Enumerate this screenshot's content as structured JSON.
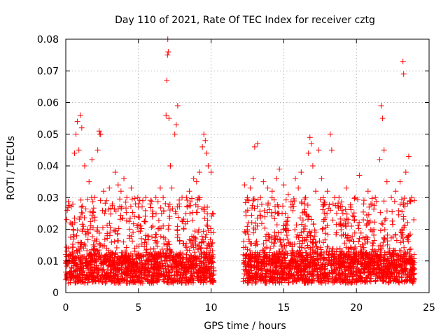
{
  "chart_data": {
    "type": "scatter",
    "title": "Day 110 of 2021, Rate Of TEC Index for receiver cztg",
    "xlabel": "GPS time / hours",
    "ylabel": "ROTI / TECUs",
    "xlim": [
      0,
      25
    ],
    "ylim": [
      0,
      0.08
    ],
    "xticks": [
      0,
      5,
      10,
      15,
      20,
      25
    ],
    "yticks": [
      0,
      0.01,
      0.02,
      0.03,
      0.04,
      0.05,
      0.06,
      0.07,
      0.08
    ],
    "xtick_labels": [
      "0",
      "5",
      "10",
      "15",
      "20",
      "25"
    ],
    "ytick_labels": [
      "0",
      "0.01",
      "0.02",
      "0.03",
      "0.04",
      "0.05",
      "0.06",
      "0.07",
      "0.08"
    ],
    "grid": true,
    "marker": "+",
    "color": "#ff0000",
    "data_gap_hours": [
      10.2,
      12.2
    ],
    "series": [
      {
        "name": "ROTI",
        "points": [
          [
            0.1,
            0.026
          ],
          [
            0.2,
            0.014
          ],
          [
            0.3,
            0.022
          ],
          [
            0.5,
            0.02
          ],
          [
            0.6,
            0.044
          ],
          [
            0.7,
            0.05
          ],
          [
            0.8,
            0.054
          ],
          [
            0.9,
            0.045
          ],
          [
            1.0,
            0.056
          ],
          [
            1.1,
            0.052
          ],
          [
            1.3,
            0.04
          ],
          [
            1.6,
            0.035
          ],
          [
            1.8,
            0.042
          ],
          [
            2.0,
            0.03
          ],
          [
            2.2,
            0.045
          ],
          [
            2.3,
            0.051
          ],
          [
            2.35,
            0.05
          ],
          [
            2.4,
            0.05
          ],
          [
            2.6,
            0.032
          ],
          [
            2.8,
            0.029
          ],
          [
            3.0,
            0.033
          ],
          [
            3.2,
            0.028
          ],
          [
            3.4,
            0.038
          ],
          [
            3.6,
            0.034
          ],
          [
            3.8,
            0.032
          ],
          [
            4.0,
            0.036
          ],
          [
            4.2,
            0.03
          ],
          [
            4.5,
            0.033
          ],
          [
            4.8,
            0.028
          ],
          [
            5.0,
            0.027
          ],
          [
            5.3,
            0.029
          ],
          [
            5.5,
            0.03
          ],
          [
            5.8,
            0.028
          ],
          [
            6.0,
            0.025
          ],
          [
            6.2,
            0.03
          ],
          [
            6.5,
            0.033
          ],
          [
            6.7,
            0.03
          ],
          [
            6.9,
            0.056
          ],
          [
            6.95,
            0.067
          ],
          [
            7.0,
            0.075
          ],
          [
            7.02,
            0.08
          ],
          [
            7.05,
            0.076
          ],
          [
            7.1,
            0.055
          ],
          [
            7.2,
            0.04
          ],
          [
            7.3,
            0.033
          ],
          [
            7.5,
            0.05
          ],
          [
            7.6,
            0.053
          ],
          [
            7.7,
            0.059
          ],
          [
            7.8,
            0.028
          ],
          [
            8.0,
            0.03
          ],
          [
            8.3,
            0.03
          ],
          [
            8.5,
            0.032
          ],
          [
            8.8,
            0.036
          ],
          [
            9.0,
            0.035
          ],
          [
            9.2,
            0.038
          ],
          [
            9.4,
            0.046
          ],
          [
            9.5,
            0.05
          ],
          [
            9.6,
            0.048
          ],
          [
            9.7,
            0.044
          ],
          [
            9.8,
            0.04
          ],
          [
            10.0,
            0.038
          ],
          [
            10.1,
            0.025
          ],
          [
            12.3,
            0.034
          ],
          [
            12.5,
            0.03
          ],
          [
            12.7,
            0.033
          ],
          [
            12.9,
            0.036
          ],
          [
            13.0,
            0.046
          ],
          [
            13.2,
            0.047
          ],
          [
            13.4,
            0.03
          ],
          [
            13.6,
            0.035
          ],
          [
            13.9,
            0.033
          ],
          [
            14.2,
            0.032
          ],
          [
            14.5,
            0.036
          ],
          [
            14.7,
            0.039
          ],
          [
            15.0,
            0.034
          ],
          [
            15.3,
            0.031
          ],
          [
            15.5,
            0.027
          ],
          [
            15.8,
            0.036
          ],
          [
            16.0,
            0.033
          ],
          [
            16.2,
            0.038
          ],
          [
            16.5,
            0.03
          ],
          [
            16.7,
            0.044
          ],
          [
            16.8,
            0.049
          ],
          [
            16.9,
            0.047
          ],
          [
            17.0,
            0.04
          ],
          [
            17.2,
            0.032
          ],
          [
            17.4,
            0.045
          ],
          [
            17.6,
            0.036
          ],
          [
            17.8,
            0.028
          ],
          [
            18.0,
            0.032
          ],
          [
            18.2,
            0.05
          ],
          [
            18.3,
            0.045
          ],
          [
            18.5,
            0.03
          ],
          [
            18.8,
            0.03
          ],
          [
            19.0,
            0.026
          ],
          [
            19.3,
            0.033
          ],
          [
            19.6,
            0.027
          ],
          [
            19.9,
            0.03
          ],
          [
            20.2,
            0.037
          ],
          [
            20.5,
            0.028
          ],
          [
            20.8,
            0.032
          ],
          [
            21.0,
            0.028
          ],
          [
            21.3,
            0.03
          ],
          [
            21.6,
            0.042
          ],
          [
            21.7,
            0.059
          ],
          [
            21.8,
            0.055
          ],
          [
            21.9,
            0.045
          ],
          [
            22.1,
            0.035
          ],
          [
            22.4,
            0.03
          ],
          [
            22.7,
            0.032
          ],
          [
            23.0,
            0.035
          ],
          [
            23.2,
            0.073
          ],
          [
            23.25,
            0.069
          ],
          [
            23.4,
            0.038
          ],
          [
            23.6,
            0.043
          ],
          [
            23.8,
            0.03
          ]
        ]
      }
    ],
    "background_band": {
      "description": "dense cluster of low ROTI values across both observation windows",
      "windows": [
        [
          0.0,
          10.2
        ],
        [
          12.2,
          24.0
        ]
      ],
      "y_range": [
        0.003,
        0.022
      ],
      "samples_per_window": [
        1600,
        1900
      ]
    }
  }
}
